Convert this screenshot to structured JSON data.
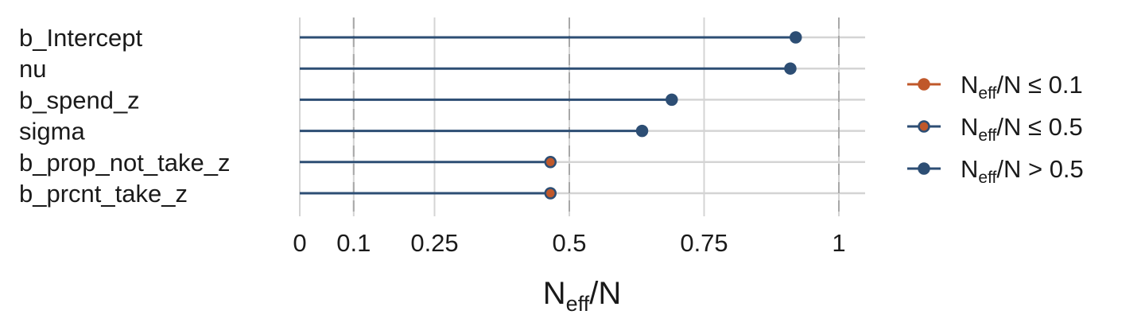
{
  "chart_data": {
    "type": "lollipop",
    "parameters": [
      "b_Intercept",
      "nu",
      "b_spend_z",
      "sigma",
      "b_prop_not_take_z",
      "b_prcnt_take_z"
    ],
    "values": [
      0.92,
      0.91,
      0.69,
      0.635,
      0.465,
      0.465
    ],
    "categories_of_points": [
      "gt_0.5",
      "gt_0.5",
      "gt_0.5",
      "gt_0.5",
      "le_0.5",
      "le_0.5"
    ],
    "xlim": [
      0,
      1.05
    ],
    "xticks": [
      {
        "value": 0,
        "label": "0"
      },
      {
        "value": 0.1,
        "label": "0.1"
      },
      {
        "value": 0.25,
        "label": "0.25"
      },
      {
        "value": 0.5,
        "label": "0.5"
      },
      {
        "value": 0.75,
        "label": "0.75"
      },
      {
        "value": 1,
        "label": "1"
      }
    ],
    "reference_lines": [
      0.1,
      0.5,
      1
    ],
    "xlabel": {
      "main": "N",
      "sub": "eff",
      "tail": "/N"
    },
    "grid": true,
    "legend_position": "right",
    "legend": [
      {
        "key": "le_0.5_low",
        "main": "N",
        "sub": "eff",
        "tail": "/N ≤ 0.1",
        "line_color": "#c0582a",
        "fill": "#c0582a",
        "stroke": "#c0582a"
      },
      {
        "key": "le_0.5",
        "main": "N",
        "sub": "eff",
        "tail": "/N ≤ 0.5",
        "line_color": "#2d4e74",
        "fill": "#c0582a",
        "stroke": "#2d4e74"
      },
      {
        "key": "gt_0.5",
        "main": "N",
        "sub": "eff",
        "tail": "/N > 0.5",
        "line_color": "#2d4e74",
        "fill": "#2d4e74",
        "stroke": "#2d4e74"
      }
    ],
    "colors": {
      "line": "#2d4e74",
      "point_gt": "#2d4e74",
      "point_le_fill": "#c0582a",
      "grid": "#d4d4d4",
      "reference": "#a8a8a8"
    }
  }
}
